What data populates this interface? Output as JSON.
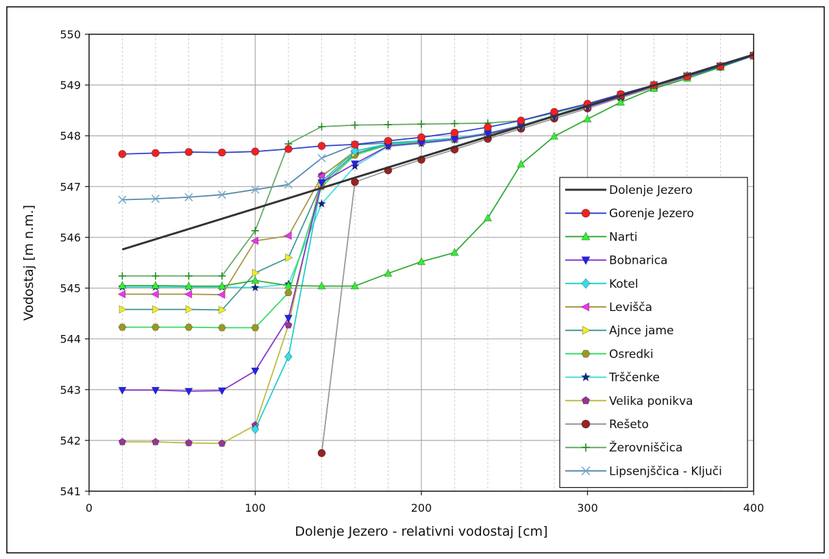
{
  "chart_data": {
    "type": "line",
    "title": "",
    "xlabel": "Dolenje Jezero - relativni vodostaj [cm]",
    "ylabel": "Vodostaj [m n.m.]",
    "xlim": [
      0,
      400
    ],
    "ylim": [
      541,
      550
    ],
    "xticks": [
      0,
      100,
      200,
      300,
      400
    ],
    "yticks": [
      541,
      542,
      543,
      544,
      545,
      546,
      547,
      548,
      549,
      550
    ],
    "grid": true,
    "legend_position": "lower-right",
    "series": [
      {
        "name": "Dolenje Jezero",
        "color": "#333333",
        "marker": "none",
        "width": 3,
        "x": [
          20,
          400
        ],
        "y": [
          545.76,
          549.6
        ]
      },
      {
        "name": "Gorenje Jezero",
        "color": "#3344cc",
        "marker": "circle",
        "marker_color": "#ee2222",
        "x": [
          20,
          40,
          60,
          80,
          100,
          120,
          140,
          160,
          180,
          200,
          220,
          240,
          260,
          280,
          300,
          320,
          340,
          360,
          380,
          400
        ],
        "y": [
          547.64,
          547.66,
          547.68,
          547.67,
          547.69,
          547.74,
          547.8,
          547.83,
          547.9,
          547.97,
          548.06,
          548.17,
          548.3,
          548.47,
          548.63,
          548.82,
          549.0,
          549.17,
          549.37,
          549.58
        ]
      },
      {
        "name": "Narti",
        "color": "#33aa33",
        "marker": "triangle-up",
        "marker_color": "#33ee33",
        "x": [
          20,
          40,
          60,
          80,
          100,
          120,
          140,
          160,
          180,
          200,
          220,
          240,
          260,
          280,
          300,
          320,
          340,
          360,
          380,
          400
        ],
        "y": [
          545.05,
          545.05,
          545.04,
          545.04,
          545.15,
          545.05,
          545.04,
          545.04,
          545.29,
          545.52,
          545.7,
          546.38,
          547.44,
          547.99,
          548.33,
          548.66,
          548.93,
          549.13,
          549.35,
          549.58
        ]
      },
      {
        "name": "Bobnarica",
        "color": "#8833cc",
        "marker": "triangle-down",
        "marker_color": "#2222ee",
        "x": [
          20,
          40,
          60,
          80,
          100,
          120,
          140,
          160,
          180,
          200,
          220,
          240,
          260,
          280,
          300,
          320,
          340,
          360,
          380,
          400
        ],
        "y": [
          542.99,
          542.99,
          542.97,
          542.98,
          543.37,
          544.41,
          547.08,
          547.45,
          547.8,
          547.86,
          547.93,
          548.04,
          548.19,
          548.38,
          548.57,
          548.77,
          548.98,
          549.17,
          549.37,
          549.58
        ]
      },
      {
        "name": "Kotel",
        "color": "#22cccc",
        "marker": "diamond",
        "marker_color": "#33ddee",
        "x": [
          100,
          120,
          140,
          160,
          180,
          200,
          220,
          240,
          260,
          280,
          300,
          320,
          340,
          360,
          380,
          400
        ],
        "y": [
          542.22,
          543.65,
          547.1,
          547.7,
          547.84,
          547.9,
          547.95,
          548.05,
          548.2,
          548.4,
          548.6,
          548.8,
          549.0,
          549.18,
          549.37,
          549.58
        ]
      },
      {
        "name": "Levišča",
        "color": "#aa9944",
        "marker": "triangle-left",
        "marker_color": "#ee33ee",
        "x": [
          20,
          40,
          60,
          80,
          100,
          120,
          140,
          160,
          180,
          200,
          220,
          240,
          260,
          280,
          300,
          320,
          340,
          360,
          380,
          400
        ],
        "y": [
          544.88,
          544.88,
          544.88,
          544.87,
          545.93,
          546.03,
          547.2,
          547.7,
          547.84,
          547.9,
          547.95,
          548.05,
          548.2,
          548.4,
          548.58,
          548.8,
          549.0,
          549.18,
          549.37,
          549.58
        ]
      },
      {
        "name": "Ajnce jame",
        "color": "#449999",
        "marker": "triangle-right",
        "marker_color": "#eeee22",
        "x": [
          20,
          40,
          60,
          80,
          100,
          120,
          140,
          160,
          180,
          200,
          220,
          240,
          260,
          280,
          300,
          320,
          340,
          360,
          380,
          400
        ],
        "y": [
          544.58,
          544.58,
          544.58,
          544.57,
          545.3,
          545.6,
          547.06,
          547.65,
          547.84,
          547.9,
          547.95,
          548.05,
          548.2,
          548.4,
          548.58,
          548.8,
          549.0,
          549.18,
          549.37,
          549.58
        ]
      },
      {
        "name": "Osredki",
        "color": "#33dd66",
        "marker": "hexagon",
        "marker_color": "#999922",
        "x": [
          20,
          40,
          60,
          80,
          100,
          120,
          140,
          160,
          180,
          200,
          220,
          240,
          260,
          280,
          300,
          320,
          340,
          360,
          380,
          400
        ],
        "y": [
          544.23,
          544.23,
          544.23,
          544.22,
          544.22,
          544.91,
          547.0,
          547.62,
          547.82,
          547.87,
          547.93,
          548.03,
          548.18,
          548.38,
          548.57,
          548.78,
          548.98,
          549.17,
          549.37,
          549.58
        ]
      },
      {
        "name": "Trščenke",
        "color": "#44dddd",
        "marker": "star",
        "marker_color": "#112288",
        "x": [
          20,
          40,
          60,
          80,
          100,
          120,
          140,
          160,
          180,
          200,
          220,
          240,
          260,
          280,
          300,
          320,
          340,
          360,
          380,
          400
        ],
        "y": [
          545.02,
          545.02,
          545.02,
          545.02,
          545.01,
          545.08,
          546.66,
          547.4,
          547.79,
          547.85,
          547.92,
          548.03,
          548.18,
          548.38,
          548.57,
          548.78,
          548.98,
          549.17,
          549.37,
          549.58
        ]
      },
      {
        "name": "Velika ponikva",
        "color": "#bbbb44",
        "marker": "pentagon",
        "marker_color": "#993399",
        "x": [
          20,
          40,
          60,
          80,
          100,
          120,
          140,
          160,
          180,
          200,
          220,
          240,
          260,
          280,
          300,
          320,
          340,
          360,
          380,
          400
        ],
        "y": [
          541.97,
          541.97,
          541.95,
          541.94,
          542.3,
          544.27,
          547.22,
          547.65,
          547.82,
          547.88,
          547.94,
          548.04,
          548.19,
          548.39,
          548.58,
          548.79,
          548.99,
          549.17,
          549.37,
          549.58
        ]
      },
      {
        "name": "Rešeto",
        "color": "#999999",
        "marker": "circle",
        "marker_color": "#992222",
        "x": [
          140,
          160,
          180,
          200,
          220,
          240,
          260,
          280,
          300,
          320,
          340,
          360,
          380,
          400
        ],
        "y": [
          541.75,
          547.09,
          547.32,
          547.53,
          547.73,
          547.94,
          548.14,
          548.34,
          548.54,
          548.75,
          548.95,
          549.16,
          549.36,
          549.58
        ]
      },
      {
        "name": "Žerovniščica",
        "color": "#66aa66",
        "marker": "plus",
        "marker_color": "#228822",
        "x": [
          20,
          40,
          60,
          80,
          100,
          120,
          140,
          160,
          180,
          200,
          220,
          240,
          260,
          280,
          300,
          320,
          340,
          360,
          380,
          400
        ],
        "y": [
          545.24,
          545.24,
          545.24,
          545.24,
          546.13,
          547.84,
          548.18,
          548.21,
          548.22,
          548.23,
          548.24,
          548.25,
          548.3,
          548.45,
          548.62,
          548.8,
          548.99,
          549.17,
          549.37,
          549.58
        ]
      },
      {
        "name": "Lipsenjščica - Ključi",
        "color": "#5588aa",
        "marker": "x",
        "marker_color": "#77aacc",
        "x": [
          20,
          40,
          60,
          80,
          100,
          120,
          140,
          160,
          180,
          200,
          220,
          240,
          260,
          280,
          300,
          320,
          340,
          360,
          380,
          400
        ],
        "y": [
          546.74,
          546.76,
          546.79,
          546.84,
          546.94,
          547.04,
          547.56,
          547.82,
          547.86,
          547.9,
          547.95,
          548.05,
          548.2,
          548.4,
          548.58,
          548.8,
          549.0,
          549.18,
          549.37,
          549.58
        ]
      }
    ]
  }
}
